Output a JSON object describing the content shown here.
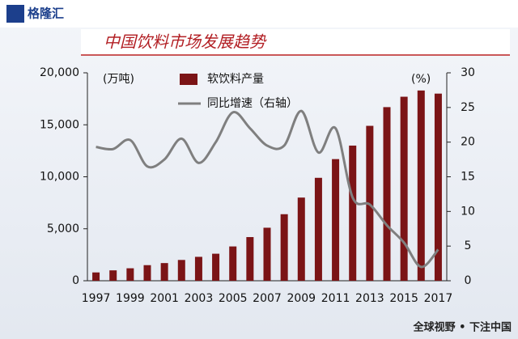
{
  "brand": "格隆汇",
  "footer": "全球视野 • 下注中国",
  "chart_data": {
    "type": "bar-line",
    "title": "中国饮料市场发展趋势",
    "y_unit": "(万吨)",
    "y2_unit": "(%)",
    "categories": [
      "1997",
      null,
      "1999",
      null,
      "2001",
      null,
      "2003",
      null,
      "2005",
      null,
      "2007",
      null,
      "2009",
      null,
      "2011",
      null,
      "2013",
      null,
      "2015",
      null,
      "2017"
    ],
    "series": [
      {
        "name": "软饮料产量",
        "type": "bar",
        "color": "#7b1416",
        "values": [
          800,
          1000,
          1200,
          1500,
          1700,
          2000,
          2300,
          2600,
          3300,
          4200,
          5100,
          6400,
          8000,
          9900,
          11700,
          13000,
          14900,
          16700,
          17700,
          18300,
          18000
        ]
      },
      {
        "name": "同比增速（右轴）",
        "type": "line",
        "axis": "y2",
        "color": "#7f7f7f",
        "values": [
          19.3,
          19,
          20.3,
          16.5,
          17.5,
          20.5,
          17,
          20,
          24.3,
          22,
          19.5,
          19.5,
          24.5,
          18.5,
          22,
          12,
          11,
          8,
          5.5,
          2,
          4.5
        ]
      }
    ],
    "ylim": [
      0,
      20000
    ],
    "yticks": [
      0,
      {
        "value": 5000,
        "label": "5,000"
      },
      {
        "value": 10000,
        "label": "10,000"
      },
      {
        "value": 15000,
        "label": "15,000"
      },
      {
        "value": 20000,
        "label": "20,000"
      }
    ],
    "y2lim": [
      0,
      30
    ],
    "y2ticks": [
      0,
      5,
      10,
      15,
      20,
      25,
      30
    ]
  }
}
